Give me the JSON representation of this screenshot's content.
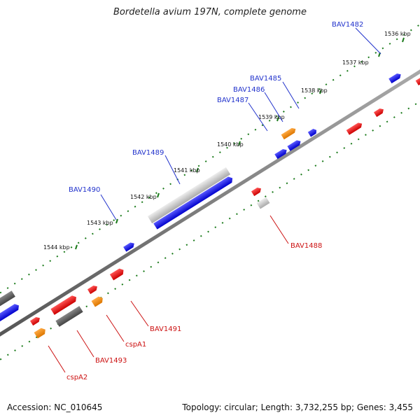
{
  "title": "Bordetella avium 197N, complete genome",
  "footer": {
    "accession": "Accession: NC_010645",
    "topology": "Topology: circular; Length: 3,732,255 bp; Genes: 3,455"
  },
  "colors": {
    "backbone": "#777777",
    "ticks": "#1a7a1a",
    "plus_label": "#2233cc",
    "minus_label": "#cc1111",
    "blue": "#1a1adf",
    "red": "#ee1111",
    "orange": "#ee8811",
    "gray": "#666666",
    "lightgray": "#c8c8c8"
  },
  "kbp_labels": [
    "1536 kbp",
    "1537 kbp",
    "1538 kbp",
    "1539 kbp",
    "1540 kbp",
    "1541 kbp",
    "1542 kbp",
    "1543 kbp",
    "1544 kbp"
  ],
  "gene_labels_plus": [
    "BAV1482",
    "BAV1485",
    "BAV1486",
    "BAV1487",
    "BAV1489",
    "BAV1490"
  ],
  "gene_labels_minus": [
    "BAV1488",
    "BAV1491",
    "cspA1",
    "BAV1493",
    "cspA2"
  ]
}
